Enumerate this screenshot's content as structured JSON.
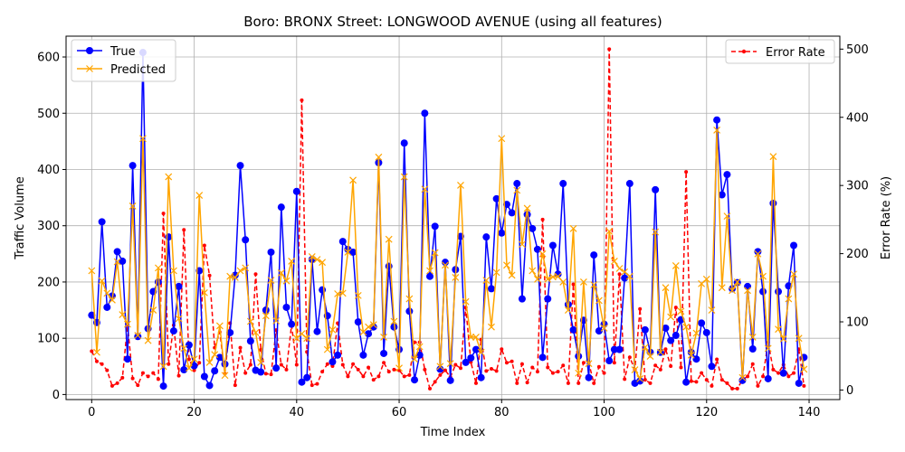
{
  "chart_data": {
    "type": "line",
    "title": "Boro: BRONX Street: LONGWOOD AVENUE (using all features)",
    "xlabel": "Time Index",
    "ylabel": "Traffic Volume",
    "y2label": "Error Rate (%)",
    "xlim": [
      -5,
      146
    ],
    "ylim": [
      -9,
      637
    ],
    "y2lim": [
      -14,
      519
    ],
    "xticks": [
      "0",
      "20",
      "40",
      "60",
      "80",
      "100",
      "120",
      "140"
    ],
    "yticks": [
      "0",
      "100",
      "200",
      "300",
      "400",
      "500",
      "600"
    ],
    "y2ticks": [
      "0",
      "100",
      "200",
      "300",
      "400",
      "500"
    ],
    "grid": true,
    "legend_left": "upper-left",
    "legend_right": "upper-right",
    "colors": {
      "true": "#0000ff",
      "predicted": "#ffa500",
      "error": "#ff0000"
    },
    "series": [
      {
        "name": "True",
        "axis": "left",
        "style": "solid-circle",
        "values": [
          141,
          128,
          307,
          155,
          175,
          254,
          237,
          63,
          407,
          103,
          608,
          117,
          183,
          200,
          15,
          280,
          113,
          192,
          44,
          88,
          51,
          220,
          32,
          16,
          42,
          66,
          54,
          110,
          212,
          407,
          275,
          95,
          43,
          40,
          150,
          253,
          47,
          333,
          155,
          125,
          361,
          22,
          30,
          240,
          112,
          186,
          140,
          58,
          70,
          272,
          258,
          253,
          129,
          70,
          108,
          120,
          412,
          73,
          228,
          120,
          80,
          447,
          148,
          26,
          70,
          500,
          210,
          299,
          45,
          235,
          25,
          222,
          281,
          57,
          65,
          80,
          30,
          280,
          188,
          348,
          287,
          338,
          323,
          375,
          170,
          320,
          295,
          258,
          66,
          170,
          265,
          214,
          375,
          160,
          115,
          68,
          132,
          30,
          248,
          113,
          125,
          60,
          80,
          80,
          207,
          375,
          20,
          24,
          115,
          75,
          364,
          75,
          118,
          96,
          105,
          133,
          22,
          75,
          63,
          127,
          110,
          50,
          488,
          355,
          391,
          188,
          199,
          25,
          192,
          81,
          254,
          183,
          28,
          340,
          183,
          38,
          193,
          265,
          20,
          66
        ]
      },
      {
        "name": "Predicted",
        "axis": "left",
        "style": "dashed-x",
        "values": [
          220,
          75,
          202,
          180,
          168,
          236,
          142,
          125,
          335,
          105,
          455,
          96,
          150,
          225,
          50,
          387,
          220,
          135,
          82,
          47,
          63,
          354,
          181,
          57,
          71,
          122,
          34,
          210,
          208,
          220,
          225,
          130,
          110,
          57,
          140,
          203,
          131,
          216,
          202,
          237,
          100,
          108,
          100,
          245,
          240,
          235,
          80,
          115,
          179,
          180,
          253,
          381,
          176,
          111,
          120,
          124,
          422,
          102,
          276,
          130,
          47,
          387,
          170,
          63,
          85,
          365,
          220,
          252,
          50,
          230,
          55,
          208,
          372,
          165,
          102,
          102,
          75,
          203,
          120,
          217,
          455,
          230,
          212,
          363,
          267,
          331,
          220,
          205,
          250,
          205,
          209,
          210,
          200,
          150,
          295,
          38,
          200,
          55,
          195,
          167,
          118,
          290,
          237,
          224,
          218,
          210,
          44,
          28,
          84,
          68,
          289,
          75,
          190,
          138,
          229,
          148,
          120,
          70,
          109,
          197,
          205,
          150,
          470,
          190,
          317,
          185,
          200,
          30,
          185,
          102,
          250,
          210,
          82,
          423,
          116,
          99,
          170,
          214,
          100,
          45
        ]
      },
      {
        "name": "Error Rate",
        "axis": "right",
        "style": "dashed-dot",
        "values": [
          57,
          42,
          38,
          29,
          6,
          10,
          18,
          96,
          17,
          7,
          25,
          20,
          25,
          16,
          259,
          38,
          95,
          21,
          235,
          45,
          29,
          40,
          212,
          168,
          62,
          85,
          24,
          98,
          7,
          62,
          25,
          37,
          170,
          59,
          24,
          23,
          88,
          37,
          30,
          95,
          37,
          425,
          56,
          7,
          9,
          27,
          38,
          35,
          98,
          37,
          20,
          38,
          30,
          20,
          33,
          15,
          20,
          40,
          27,
          30,
          29,
          20,
          22,
          70,
          70,
          30,
          2,
          12,
          22,
          29,
          19,
          37,
          32,
          121,
          41,
          10,
          74,
          28,
          31,
          28,
          60,
          40,
          42,
          10,
          38,
          11,
          33,
          27,
          250,
          33,
          25,
          27,
          36,
          10,
          155,
          10,
          40,
          40,
          10,
          34,
          25,
          500,
          40,
          170,
          16,
          48,
          30,
          119,
          15,
          10,
          36,
          30,
          60,
          35,
          121,
          33,
          320,
          13,
          12,
          25,
          15,
          6,
          45,
          15,
          10,
          2,
          2,
          15,
          20,
          38,
          6,
          20,
          70,
          30,
          25,
          37,
          20,
          25,
          60,
          6
        ]
      }
    ]
  }
}
